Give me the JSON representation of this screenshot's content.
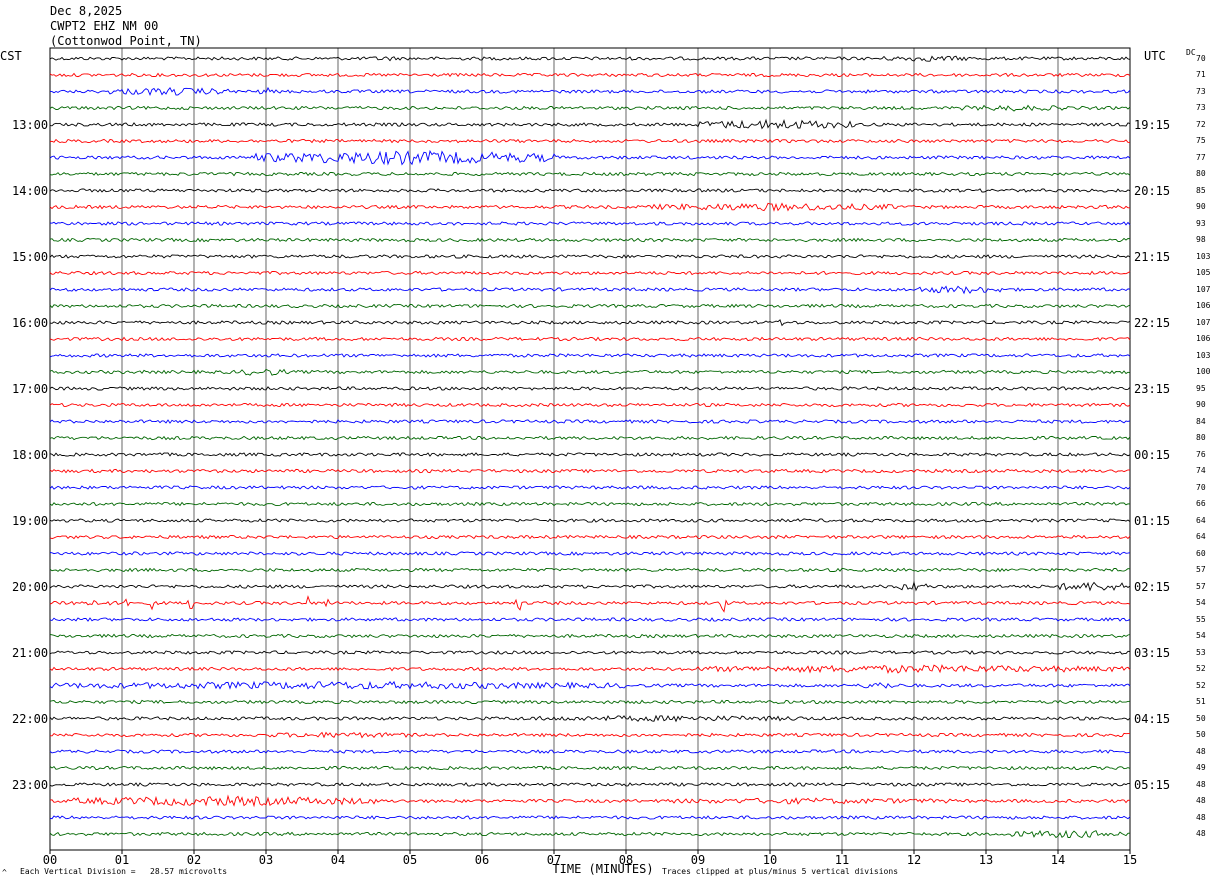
{
  "header": {
    "date": "Dec 8,2025",
    "station": "CWPT2 EHZ NM 00",
    "location": "(Cottonwod Point, TN)"
  },
  "left_zone": "CST",
  "right_zone": "UTC",
  "dc_header": "DC",
  "footer": {
    "scale_note": "Each Vertical Division =   28.57 microvolts",
    "clip_note": "Traces clipped at plus/minus 5 vertical divisions",
    "corner_mark": "^"
  },
  "colors": {
    "trace_cycle": [
      "#000000",
      "#ff0000",
      "#0000ff",
      "#006600"
    ],
    "grid": "#000000"
  },
  "chart_data": {
    "type": "line",
    "title": "Dec 8,2025 CWPT2 EHZ NM 00 (Cottonwod Point, TN)",
    "xlabel": "TIME (MINUTES)",
    "ylabel": "",
    "x_ticks": [
      "00",
      "01",
      "02",
      "03",
      "04",
      "05",
      "06",
      "07",
      "08",
      "09",
      "10",
      "11",
      "12",
      "13",
      "14",
      "15"
    ],
    "xlim": [
      0,
      15
    ],
    "rows_per_hour": 4,
    "hour_labels_cst": [
      "13:00",
      "14:00",
      "15:00",
      "16:00",
      "17:00",
      "18:00",
      "19:00",
      "20:00",
      "21:00",
      "22:00",
      "23:00"
    ],
    "hour_labels_utc": [
      "19:15",
      "20:15",
      "21:15",
      "22:15",
      "23:15",
      "00:15",
      "01:15",
      "02:15",
      "03:15",
      "04:15",
      "05:15"
    ],
    "first_labeled_row": 4,
    "dc_offsets": [
      70,
      71,
      73,
      73,
      72,
      75,
      77,
      80,
      85,
      90,
      93,
      98,
      103,
      105,
      107,
      106,
      107,
      106,
      103,
      100,
      95,
      90,
      84,
      80,
      76,
      74,
      70,
      66,
      64,
      64,
      60,
      57,
      57,
      54,
      55,
      54,
      53,
      52,
      52,
      51,
      50,
      50,
      48,
      49,
      48,
      48,
      48,
      48
    ],
    "event_bursts": [
      {
        "row": 0,
        "start_min": 4.5,
        "end_min": 4.8,
        "amp": 2
      },
      {
        "row": 0,
        "start_min": 11.5,
        "end_min": 12.8,
        "amp": 2
      },
      {
        "row": 2,
        "start_min": 0.8,
        "end_min": 2.5,
        "amp": 3
      },
      {
        "row": 2,
        "start_min": 2.9,
        "end_min": 3.1,
        "amp": 3
      },
      {
        "row": 3,
        "start_min": 12.6,
        "end_min": 14.2,
        "amp": 2
      },
      {
        "row": 4,
        "start_min": 9.0,
        "end_min": 11.2,
        "amp": 4
      },
      {
        "row": 6,
        "start_min": 2.8,
        "end_min": 7.0,
        "amp": 6
      },
      {
        "row": 9,
        "start_min": 8.3,
        "end_min": 11.8,
        "amp": 3
      },
      {
        "row": 14,
        "start_min": 12.0,
        "end_min": 13.3,
        "amp": 3
      },
      {
        "row": 19,
        "start_min": 2.6,
        "end_min": 3.3,
        "amp": 3
      },
      {
        "row": 32,
        "start_min": 11.8,
        "end_min": 12.2,
        "amp": 4
      },
      {
        "row": 32,
        "start_min": 14.0,
        "end_min": 15.0,
        "amp": 4
      },
      {
        "row": 33,
        "start_min": 0.0,
        "end_min": 0.9,
        "amp": 2
      },
      {
        "row": 37,
        "start_min": 8.9,
        "end_min": 15.0,
        "amp": 3
      },
      {
        "row": 38,
        "start_min": 0.0,
        "end_min": 8.0,
        "amp": 3
      },
      {
        "row": 38,
        "start_min": 11.3,
        "end_min": 11.8,
        "amp": 3
      },
      {
        "row": 40,
        "start_min": 6.5,
        "end_min": 10.6,
        "amp": 2
      },
      {
        "row": 41,
        "start_min": 3.0,
        "end_min": 5.0,
        "amp": 2
      },
      {
        "row": 45,
        "start_min": 0.3,
        "end_min": 4.5,
        "amp": 4
      },
      {
        "row": 45,
        "start_min": 8.5,
        "end_min": 12.5,
        "amp": 2
      },
      {
        "row": 47,
        "start_min": 13.3,
        "end_min": 15.0,
        "amp": 3
      }
    ],
    "spikes": [
      {
        "row": 33,
        "minute": 1.05,
        "amp": 8
      },
      {
        "row": 33,
        "minute": 1.45,
        "amp": 7
      },
      {
        "row": 33,
        "minute": 1.95,
        "amp": 6
      },
      {
        "row": 33,
        "minute": 3.6,
        "amp": 7
      },
      {
        "row": 33,
        "minute": 3.85,
        "amp": 6
      },
      {
        "row": 33,
        "minute": 6.5,
        "amp": 7
      },
      {
        "row": 33,
        "minute": 9.35,
        "amp": 9
      },
      {
        "row": 16,
        "minute": 10.15,
        "amp": 5
      }
    ]
  }
}
